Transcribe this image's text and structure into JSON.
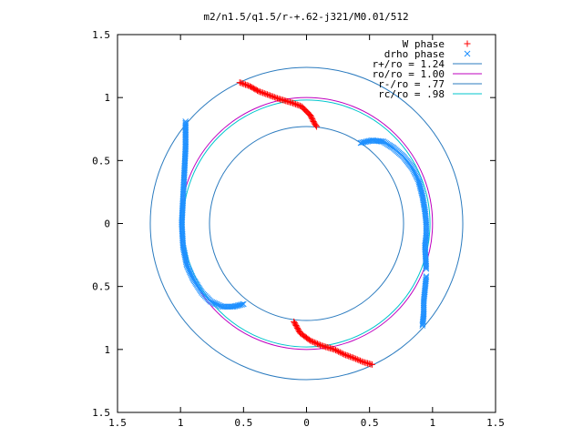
{
  "chart_data": {
    "type": "scatter",
    "title": "m2/n1.5/q1.5/r-+.62-j321/M0.01/512",
    "xlim": [
      -1.5,
      1.5
    ],
    "ylim": [
      -1.5,
      1.5
    ],
    "x_ticks": [
      -1.5,
      -1,
      -0.5,
      0,
      0.5,
      1,
      1.5
    ],
    "y_ticks": [
      -1.5,
      -1,
      -0.5,
      0,
      0.5,
      1,
      1.5
    ],
    "x_tick_labels": [
      "1.5",
      "1",
      "0.5",
      "0",
      "0.5",
      "1",
      "1.5"
    ],
    "y_tick_labels": [
      "1.5",
      "1",
      "0.5",
      "0",
      "0.5",
      "1",
      "1.5"
    ],
    "grid": false,
    "legend_position": "top-right",
    "series": [
      {
        "name": "W phase",
        "kind": "points",
        "marker": "+",
        "color": "#ff0000",
        "segments": [
          [
            [
              -0.53,
              1.12
            ],
            [
              -0.45,
              1.09
            ],
            [
              -0.38,
              1.05
            ],
            [
              -0.3,
              1.02
            ],
            [
              -0.22,
              0.99
            ],
            [
              -0.12,
              0.96
            ],
            [
              -0.04,
              0.93
            ],
            [
              0.03,
              0.86
            ],
            [
              0.06,
              0.8
            ],
            [
              0.08,
              0.77
            ]
          ],
          [
            [
              -0.1,
              -0.78
            ],
            [
              -0.05,
              -0.87
            ],
            [
              0.03,
              -0.93
            ],
            [
              0.12,
              -0.97
            ],
            [
              0.22,
              -1.0
            ],
            [
              0.3,
              -1.04
            ],
            [
              0.38,
              -1.07
            ],
            [
              0.45,
              -1.1
            ],
            [
              0.52,
              -1.12
            ]
          ]
        ]
      },
      {
        "name": "drho phase",
        "kind": "points",
        "marker": "x",
        "color": "#1e90ff",
        "segments": [
          [
            [
              -0.96,
              0.81
            ],
            [
              -0.96,
              0.6
            ],
            [
              -0.97,
              0.4
            ],
            [
              -0.98,
              0.2
            ],
            [
              -0.99,
              0.0
            ],
            [
              -0.98,
              -0.18
            ],
            [
              -0.95,
              -0.33
            ],
            [
              -0.9,
              -0.44
            ],
            [
              -0.83,
              -0.55
            ],
            [
              -0.76,
              -0.62
            ],
            [
              -0.67,
              -0.66
            ],
            [
              -0.58,
              -0.66
            ],
            [
              -0.5,
              -0.64
            ]
          ],
          [
            [
              0.43,
              0.64
            ],
            [
              0.52,
              0.66
            ],
            [
              0.61,
              0.65
            ],
            [
              0.69,
              0.6
            ],
            [
              0.77,
              0.53
            ],
            [
              0.84,
              0.44
            ],
            [
              0.89,
              0.34
            ],
            [
              0.92,
              0.22
            ],
            [
              0.94,
              0.1
            ],
            [
              0.95,
              0.0
            ],
            [
              0.95,
              -0.1
            ],
            [
              0.94,
              -0.18
            ],
            [
              0.95,
              -0.36
            ]
          ],
          [
            [
              0.95,
              -0.42
            ],
            [
              0.94,
              -0.52
            ],
            [
              0.93,
              -0.62
            ],
            [
              0.93,
              -0.72
            ],
            [
              0.92,
              -0.81
            ]
          ]
        ]
      },
      {
        "name": "r+/ro = 1.24",
        "kind": "circle",
        "radius": 1.24,
        "color": "#2b7bbf"
      },
      {
        "name": "ro/ro = 1.00",
        "kind": "circle",
        "radius": 1.0,
        "color": "#bf00bf"
      },
      {
        "name": "r-/ro = .77",
        "kind": "circle",
        "radius": 0.77,
        "color": "#2b7bbf"
      },
      {
        "name": "rc/ro = .98",
        "kind": "circle",
        "radius": 0.98,
        "color": "#00c5cd"
      }
    ]
  }
}
